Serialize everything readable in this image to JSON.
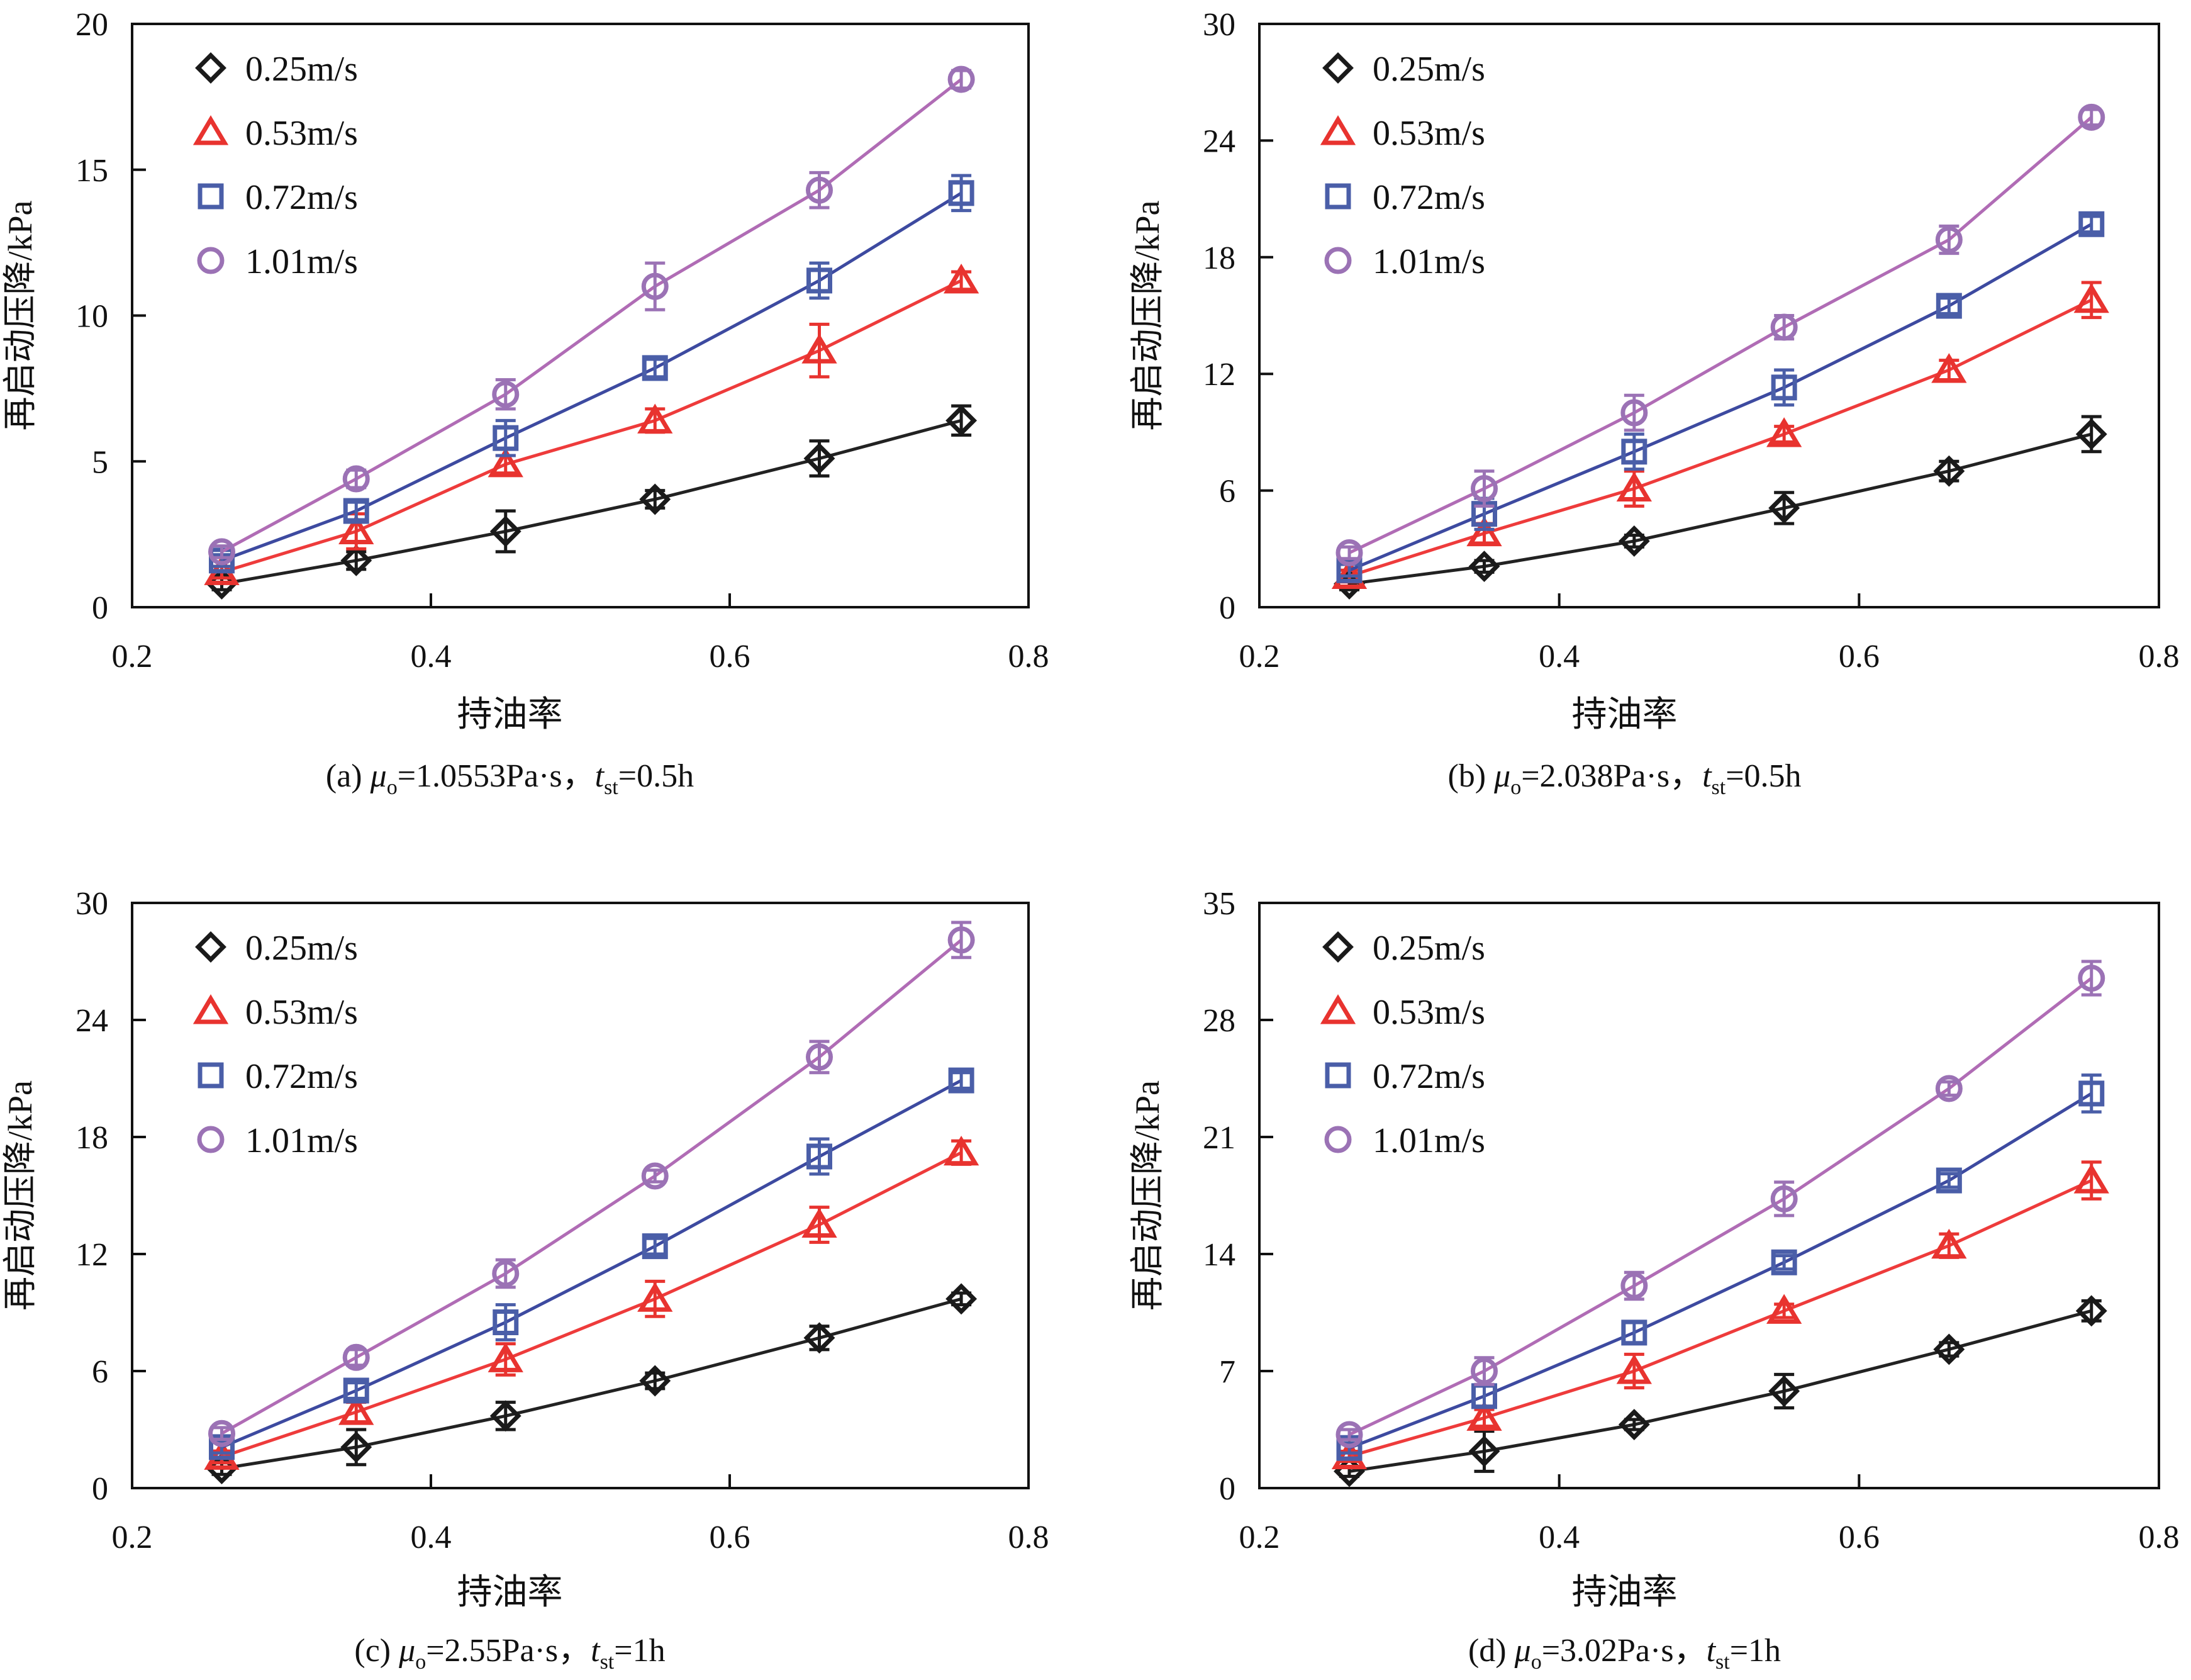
{
  "chart_data": [
    {
      "type": "line",
      "panel_label": "(a)",
      "caption": {
        "prefix": "(a) ",
        "mu": "μ",
        "mu_sub": "o",
        "mu_val": "=1.0553Pa·s，",
        "t": "t",
        "t_sub": "st",
        "t_val": "=0.5h"
      },
      "xlabel": "持油率",
      "ylabel": "再启动压降/kPa",
      "xlim": [
        0.2,
        0.8
      ],
      "ylim": [
        0,
        20
      ],
      "xticks": [
        0.2,
        0.4,
        0.6,
        0.8
      ],
      "yticks": [
        0,
        5,
        10,
        15,
        20
      ],
      "x": [
        0.26,
        0.35,
        0.45,
        0.55,
        0.66,
        0.755
      ],
      "legend_position": "top-left",
      "series": [
        {
          "name": "0.25m/s",
          "marker": "diamond",
          "color": "#1a1a1a",
          "values": [
            0.8,
            1.6,
            2.6,
            3.7,
            5.1,
            6.4
          ],
          "errors": [
            0.2,
            0.3,
            0.7,
            0.3,
            0.6,
            0.5
          ]
        },
        {
          "name": "0.53m/s",
          "marker": "triangle",
          "color": "#e8332f",
          "values": [
            1.2,
            2.6,
            4.9,
            6.4,
            8.8,
            11.2
          ],
          "errors": [
            0.2,
            0.6,
            0.3,
            0.4,
            0.9,
            0.3
          ]
        },
        {
          "name": "0.72m/s",
          "marker": "square",
          "color": "#4a5ea8",
          "values": [
            1.6,
            3.3,
            5.8,
            8.2,
            11.2,
            14.2
          ],
          "errors": [
            0.2,
            0.3,
            0.6,
            0.3,
            0.6,
            0.6
          ]
        },
        {
          "name": "1.01m/s",
          "marker": "circle",
          "color": "#9b72b5",
          "values": [
            1.9,
            4.4,
            7.3,
            11.0,
            14.3,
            18.1
          ],
          "errors": [
            0.2,
            0.3,
            0.5,
            0.8,
            0.6,
            0.3
          ]
        }
      ]
    },
    {
      "type": "line",
      "panel_label": "(b)",
      "caption": {
        "prefix": "(b) ",
        "mu": "μ",
        "mu_sub": "o",
        "mu_val": "=2.038Pa·s，",
        "t": "t",
        "t_sub": "st",
        "t_val": "=0.5h"
      },
      "xlabel": "持油率",
      "ylabel": "再启动压降/kPa",
      "xlim": [
        0.2,
        0.8
      ],
      "ylim": [
        0,
        30
      ],
      "xticks": [
        0.2,
        0.4,
        0.6,
        0.8
      ],
      "yticks": [
        0,
        6,
        12,
        18,
        24,
        30
      ],
      "x": [
        0.26,
        0.35,
        0.45,
        0.55,
        0.66,
        0.755
      ],
      "legend_position": "top-left",
      "series": [
        {
          "name": "0.25m/s",
          "marker": "diamond",
          "color": "#1a1a1a",
          "values": [
            1.2,
            2.1,
            3.4,
            5.1,
            7.0,
            8.9
          ],
          "errors": [
            0.3,
            0.3,
            0.3,
            0.8,
            0.5,
            0.9
          ]
        },
        {
          "name": "0.53m/s",
          "marker": "triangle",
          "color": "#e8332f",
          "values": [
            1.6,
            3.8,
            6.1,
            8.9,
            12.2,
            15.8
          ],
          "errors": [
            0.3,
            0.5,
            0.9,
            0.4,
            0.5,
            0.9
          ]
        },
        {
          "name": "0.72m/s",
          "marker": "square",
          "color": "#4a5ea8",
          "values": [
            1.9,
            4.8,
            8.0,
            11.3,
            15.5,
            19.7
          ],
          "errors": [
            0.3,
            0.8,
            0.9,
            0.9,
            0.4,
            0.4
          ]
        },
        {
          "name": "1.01m/s",
          "marker": "circle",
          "color": "#9b72b5",
          "values": [
            2.8,
            6.1,
            10.0,
            14.4,
            18.9,
            25.2
          ],
          "errors": [
            0.3,
            0.9,
            0.9,
            0.6,
            0.7,
            0.4
          ]
        }
      ]
    },
    {
      "type": "line",
      "panel_label": "(c)",
      "caption": {
        "prefix": "(c) ",
        "mu": "μ",
        "mu_sub": "o",
        "mu_val": "=2.55Pa·s，",
        "t": "t",
        "t_sub": "st",
        "t_val": "=1h"
      },
      "xlabel": "持油率",
      "ylabel": "再启动压降/kPa",
      "xlim": [
        0.2,
        0.8
      ],
      "ylim": [
        0,
        30
      ],
      "xticks": [
        0.2,
        0.4,
        0.6,
        0.8
      ],
      "yticks": [
        0,
        6,
        12,
        18,
        24,
        30
      ],
      "x": [
        0.26,
        0.35,
        0.45,
        0.55,
        0.66,
        0.755
      ],
      "legend_position": "top-left",
      "series": [
        {
          "name": "0.25m/s",
          "marker": "diamond",
          "color": "#1a1a1a",
          "values": [
            1.0,
            2.1,
            3.7,
            5.5,
            7.7,
            9.7
          ],
          "errors": [
            0.3,
            0.9,
            0.7,
            0.4,
            0.6,
            0.3
          ]
        },
        {
          "name": "0.53m/s",
          "marker": "triangle",
          "color": "#e8332f",
          "values": [
            1.6,
            3.9,
            6.6,
            9.7,
            13.5,
            17.2
          ],
          "errors": [
            0.3,
            0.5,
            0.8,
            0.9,
            0.9,
            0.6
          ]
        },
        {
          "name": "0.72m/s",
          "marker": "square",
          "color": "#4a5ea8",
          "values": [
            2.1,
            5.0,
            8.5,
            12.4,
            17.0,
            20.9
          ],
          "errors": [
            0.3,
            0.4,
            0.9,
            0.4,
            0.9,
            0.4
          ]
        },
        {
          "name": "1.01m/s",
          "marker": "circle",
          "color": "#9b72b5",
          "values": [
            2.8,
            6.7,
            11.0,
            16.0,
            22.1,
            28.1
          ],
          "errors": [
            0.3,
            0.4,
            0.7,
            0.3,
            0.8,
            0.9
          ]
        }
      ]
    },
    {
      "type": "line",
      "panel_label": "(d)",
      "caption": {
        "prefix": "(d) ",
        "mu": "μ",
        "mu_sub": "o",
        "mu_val": "=3.02Pa·s，",
        "t": "t",
        "t_sub": "st",
        "t_val": "=1h"
      },
      "xlabel": "持油率",
      "ylabel": "再启动压降/kPa",
      "xlim": [
        0.2,
        0.8
      ],
      "ylim": [
        0,
        35
      ],
      "xticks": [
        0.2,
        0.4,
        0.6,
        0.8
      ],
      "yticks": [
        0,
        7,
        14,
        21,
        28,
        35
      ],
      "x": [
        0.26,
        0.35,
        0.45,
        0.55,
        0.66,
        0.755
      ],
      "legend_position": "top-left",
      "series": [
        {
          "name": "0.25m/s",
          "marker": "diamond",
          "color": "#1a1a1a",
          "values": [
            1.0,
            2.2,
            3.8,
            5.8,
            8.3,
            10.6
          ],
          "errors": [
            0.3,
            1.2,
            0.3,
            1.0,
            0.4,
            0.6
          ]
        },
        {
          "name": "0.53m/s",
          "marker": "triangle",
          "color": "#e8332f",
          "values": [
            1.9,
            4.2,
            7.0,
            10.6,
            14.5,
            18.4
          ],
          "errors": [
            0.3,
            0.5,
            1.0,
            0.4,
            0.7,
            1.1
          ]
        },
        {
          "name": "0.72m/s",
          "marker": "square",
          "color": "#4a5ea8",
          "values": [
            2.4,
            5.5,
            9.3,
            13.5,
            18.4,
            23.6
          ],
          "errors": [
            0.3,
            0.6,
            0.6,
            0.4,
            0.4,
            1.1
          ]
        },
        {
          "name": "1.01m/s",
          "marker": "circle",
          "color": "#9b72b5",
          "values": [
            3.2,
            7.0,
            12.1,
            17.3,
            23.9,
            30.5
          ],
          "errors": [
            0.3,
            0.8,
            0.8,
            1.0,
            0.4,
            1.0
          ]
        }
      ]
    }
  ]
}
